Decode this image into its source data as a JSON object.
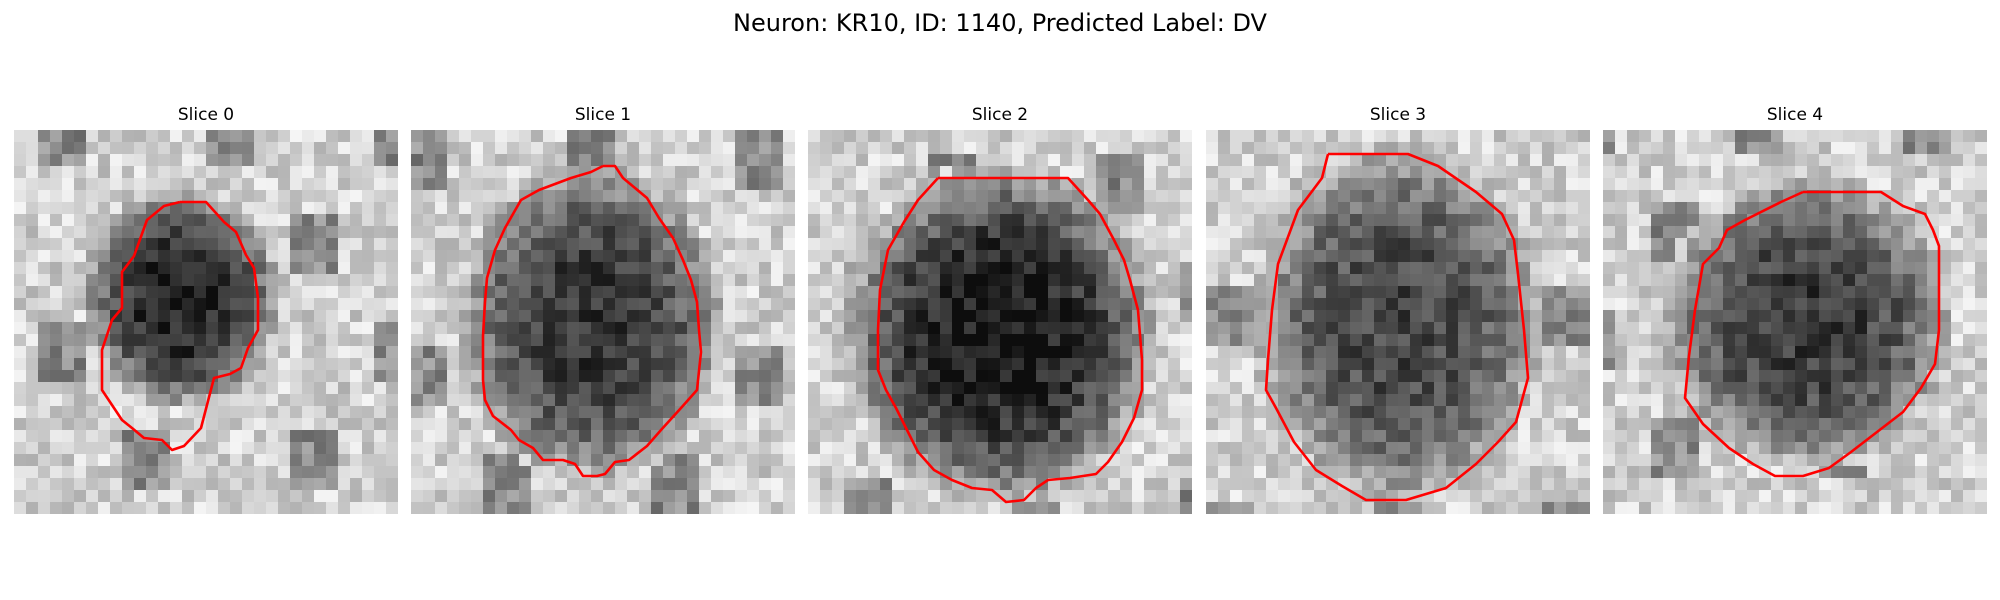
{
  "figure": {
    "title": "Neuron: KR10, ID: 1140, Predicted Label: DV"
  },
  "slices": [
    {
      "title": "Slice 0"
    },
    {
      "title": "Slice 1"
    },
    {
      "title": "Slice 2"
    },
    {
      "title": "Slice 3"
    },
    {
      "title": "Slice 4"
    }
  ],
  "colors": {
    "contour": "#ff0000",
    "background": "#ffffff"
  }
}
